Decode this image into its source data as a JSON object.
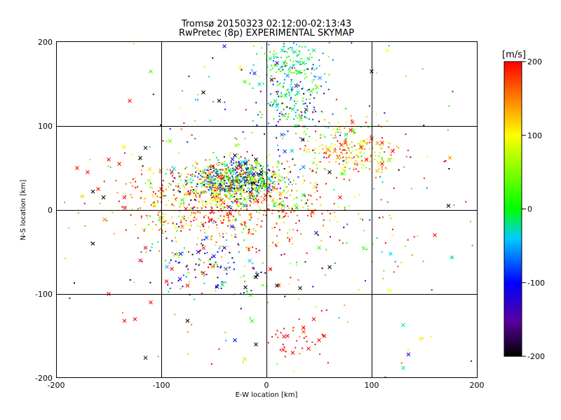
{
  "chart_data": {
    "type": "scatter",
    "title": "Tromsø 20150323 02:12:00-02:13:43",
    "subtitle": "RwPretec (8p) EXPERIMENTAL SKYMAP",
    "xlabel": "E-W location [km]",
    "ylabel": "N-S location [km]",
    "xlim": [
      -200,
      200
    ],
    "ylim": [
      -200,
      200
    ],
    "x_ticks": [
      "-200",
      "-100",
      "0",
      "100",
      "200"
    ],
    "y_ticks": [
      "-200",
      "-100",
      "0",
      "100",
      "200"
    ],
    "grid": true,
    "colorbar": {
      "label": "[m/s]",
      "range": [
        -200,
        200
      ],
      "ticks": [
        "200",
        "100",
        "0",
        "-100",
        "-200"
      ],
      "colormap": "rainbow (black → purple → blue → cyan → green → yellow → red)"
    },
    "marker_types": [
      "dot",
      "cross"
    ],
    "clusters": [
      {
        "center": [
          -30,
          35
        ],
        "spread": [
          22,
          12
        ],
        "velocity_mean": 0,
        "velocity_sd": 110
      },
      {
        "center": [
          -45,
          5
        ],
        "spread": [
          50,
          22
        ],
        "velocity_mean": 150,
        "velocity_sd": 60
      },
      {
        "center": [
          25,
          180
        ],
        "spread": [
          14,
          18
        ],
        "velocity_mean": -20,
        "velocity_sd": 40
      },
      {
        "center": [
          25,
          130
        ],
        "spread": [
          18,
          22
        ],
        "velocity_mean": -60,
        "velocity_sd": 80
      },
      {
        "center": [
          80,
          72
        ],
        "spread": [
          22,
          15
        ],
        "velocity_mean": 120,
        "velocity_sd": 60
      },
      {
        "center": [
          30,
          -155
        ],
        "spread": [
          14,
          12
        ],
        "velocity_mean": 200,
        "velocity_sd": 20
      },
      {
        "center": [
          -50,
          -60
        ],
        "spread": [
          30,
          25
        ],
        "velocity_mean": -60,
        "velocity_sd": 110
      },
      {
        "center": [
          0,
          0
        ],
        "spread": [
          100,
          100
        ],
        "velocity_mean": 60,
        "velocity_sd": 140
      }
    ],
    "points": [
      {
        "x": -45,
        "y": 40,
        "v": 200,
        "m": "cross"
      },
      {
        "x": -30,
        "y": 35,
        "v": 0,
        "m": "cross"
      },
      {
        "x": -20,
        "y": 55,
        "v": -200,
        "m": "cross"
      },
      {
        "x": -35,
        "y": 25,
        "v": 180,
        "m": "cross"
      },
      {
        "x": -5,
        "y": 45,
        "v": -200,
        "m": "cross"
      },
      {
        "x": -10,
        "y": 60,
        "v": -200,
        "m": "cross"
      },
      {
        "x": 100,
        "y": 165,
        "v": -200,
        "m": "cross"
      },
      {
        "x": 173,
        "y": 5,
        "v": -200,
        "m": "cross"
      },
      {
        "x": -165,
        "y": 22,
        "v": -200,
        "m": "cross"
      },
      {
        "x": -155,
        "y": 15,
        "v": -200,
        "m": "cross"
      },
      {
        "x": -165,
        "y": -40,
        "v": -200,
        "m": "cross"
      },
      {
        "x": -115,
        "y": -176,
        "v": -200,
        "m": "cross"
      },
      {
        "x": -20,
        "y": -92,
        "v": -200,
        "m": "cross"
      },
      {
        "x": -10,
        "y": -80,
        "v": -200,
        "m": "cross"
      },
      {
        "x": 10,
        "y": -90,
        "v": -200,
        "m": "cross"
      },
      {
        "x": 32,
        "y": -93,
        "v": -200,
        "m": "cross"
      },
      {
        "x": -60,
        "y": 140,
        "v": -200,
        "m": "cross"
      },
      {
        "x": -45,
        "y": 130,
        "v": -200,
        "m": "cross"
      },
      {
        "x": -120,
        "y": 62,
        "v": -200,
        "m": "cross"
      },
      {
        "x": -115,
        "y": 74,
        "v": -200,
        "m": "cross"
      },
      {
        "x": -30,
        "y": 65,
        "v": -200,
        "m": "cross"
      },
      {
        "x": 80,
        "y": 95,
        "v": 200,
        "m": "cross"
      },
      {
        "x": 90,
        "y": 75,
        "v": 200,
        "m": "cross"
      },
      {
        "x": 75,
        "y": 80,
        "v": 200,
        "m": "cross"
      },
      {
        "x": 100,
        "y": 85,
        "v": 200,
        "m": "cross"
      },
      {
        "x": 95,
        "y": 60,
        "v": 200,
        "m": "cross"
      },
      {
        "x": 65,
        "y": 70,
        "v": 150,
        "m": "cross"
      },
      {
        "x": 110,
        "y": 80,
        "v": 200,
        "m": "cross"
      },
      {
        "x": 160,
        "y": -30,
        "v": 200,
        "m": "cross"
      },
      {
        "x": 130,
        "y": -137,
        "v": -20,
        "m": "cross"
      },
      {
        "x": 135,
        "y": -172,
        "v": -120,
        "m": "cross"
      },
      {
        "x": 130,
        "y": -188,
        "v": -20,
        "m": "cross"
      },
      {
        "x": 35,
        "y": 175,
        "v": 0,
        "m": "cross"
      },
      {
        "x": 20,
        "y": 160,
        "v": -60,
        "m": "cross"
      },
      {
        "x": 15,
        "y": 190,
        "v": -20,
        "m": "cross"
      },
      {
        "x": 40,
        "y": 180,
        "v": -20,
        "m": "cross"
      },
      {
        "x": 30,
        "y": 140,
        "v": -20,
        "m": "cross"
      },
      {
        "x": 25,
        "y": 120,
        "v": -20,
        "m": "cross"
      },
      {
        "x": 45,
        "y": 190,
        "v": -20,
        "m": "cross"
      },
      {
        "x": 10,
        "y": 175,
        "v": -120,
        "m": "cross"
      },
      {
        "x": 5,
        "y": 155,
        "v": -200,
        "m": "cross"
      },
      {
        "x": 28,
        "y": 100,
        "v": 0,
        "m": "cross"
      },
      {
        "x": -120,
        "y": -60,
        "v": 200,
        "m": "cross"
      },
      {
        "x": -115,
        "y": -45,
        "v": 200,
        "m": "cross"
      },
      {
        "x": -95,
        "y": -85,
        "v": 200,
        "m": "cross"
      },
      {
        "x": -90,
        "y": -70,
        "v": 200,
        "m": "cross"
      },
      {
        "x": -75,
        "y": -90,
        "v": 200,
        "m": "cross"
      },
      {
        "x": -60,
        "y": -75,
        "v": 200,
        "m": "cross"
      },
      {
        "x": -50,
        "y": -55,
        "v": -100,
        "m": "cross"
      },
      {
        "x": -40,
        "y": -45,
        "v": -140,
        "m": "cross"
      },
      {
        "x": -65,
        "y": -50,
        "v": -140,
        "m": "cross"
      },
      {
        "x": -180,
        "y": 50,
        "v": 200,
        "m": "cross"
      },
      {
        "x": -170,
        "y": 45,
        "v": 200,
        "m": "cross"
      },
      {
        "x": -150,
        "y": 60,
        "v": 200,
        "m": "cross"
      },
      {
        "x": -140,
        "y": 55,
        "v": 200,
        "m": "cross"
      },
      {
        "x": -160,
        "y": 25,
        "v": 200,
        "m": "cross"
      },
      {
        "x": -135,
        "y": 15,
        "v": 200,
        "m": "cross"
      },
      {
        "x": -150,
        "y": -100,
        "v": 200,
        "m": "cross"
      },
      {
        "x": -135,
        "y": -132,
        "v": 200,
        "m": "cross"
      },
      {
        "x": -125,
        "y": -130,
        "v": 200,
        "m": "cross"
      },
      {
        "x": -75,
        "y": -132,
        "v": -200,
        "m": "cross"
      },
      {
        "x": -30,
        "y": -155,
        "v": -100,
        "m": "cross"
      },
      {
        "x": -10,
        "y": -160,
        "v": -200,
        "m": "cross"
      },
      {
        "x": 20,
        "y": -150,
        "v": 200,
        "m": "cross"
      },
      {
        "x": 35,
        "y": -140,
        "v": 200,
        "m": "cross"
      },
      {
        "x": 50,
        "y": -155,
        "v": 200,
        "m": "cross"
      },
      {
        "x": 40,
        "y": -165,
        "v": 200,
        "m": "cross"
      },
      {
        "x": 25,
        "y": -170,
        "v": 200,
        "m": "cross"
      },
      {
        "x": 55,
        "y": -150,
        "v": 200,
        "m": "cross"
      },
      {
        "x": 45,
        "y": -130,
        "v": 200,
        "m": "cross"
      },
      {
        "x": -110,
        "y": 165,
        "v": 20,
        "m": "cross"
      },
      {
        "x": -130,
        "y": 130,
        "v": 200,
        "m": "cross"
      },
      {
        "x": -40,
        "y": 195,
        "v": -120,
        "m": "cross"
      },
      {
        "x": 115,
        "y": 190,
        "v": 100,
        "m": "cross"
      },
      {
        "x": -25,
        "y": 170,
        "v": 100,
        "m": "cross"
      },
      {
        "x": 50,
        "y": -45,
        "v": 20,
        "m": "cross"
      },
      {
        "x": 70,
        "y": 15,
        "v": 200,
        "m": "cross"
      },
      {
        "x": 60,
        "y": 45,
        "v": -200,
        "m": "cross"
      },
      {
        "x": 120,
        "y": 70,
        "v": 200,
        "m": "cross"
      },
      {
        "x": 110,
        "y": 55,
        "v": 200,
        "m": "cross"
      },
      {
        "x": -90,
        "y": 45,
        "v": 200,
        "m": "cross"
      },
      {
        "x": -100,
        "y": 25,
        "v": 200,
        "m": "cross"
      },
      {
        "x": -80,
        "y": -20,
        "v": 150,
        "m": "cross"
      },
      {
        "x": -110,
        "y": -110,
        "v": 200,
        "m": "cross"
      }
    ]
  }
}
